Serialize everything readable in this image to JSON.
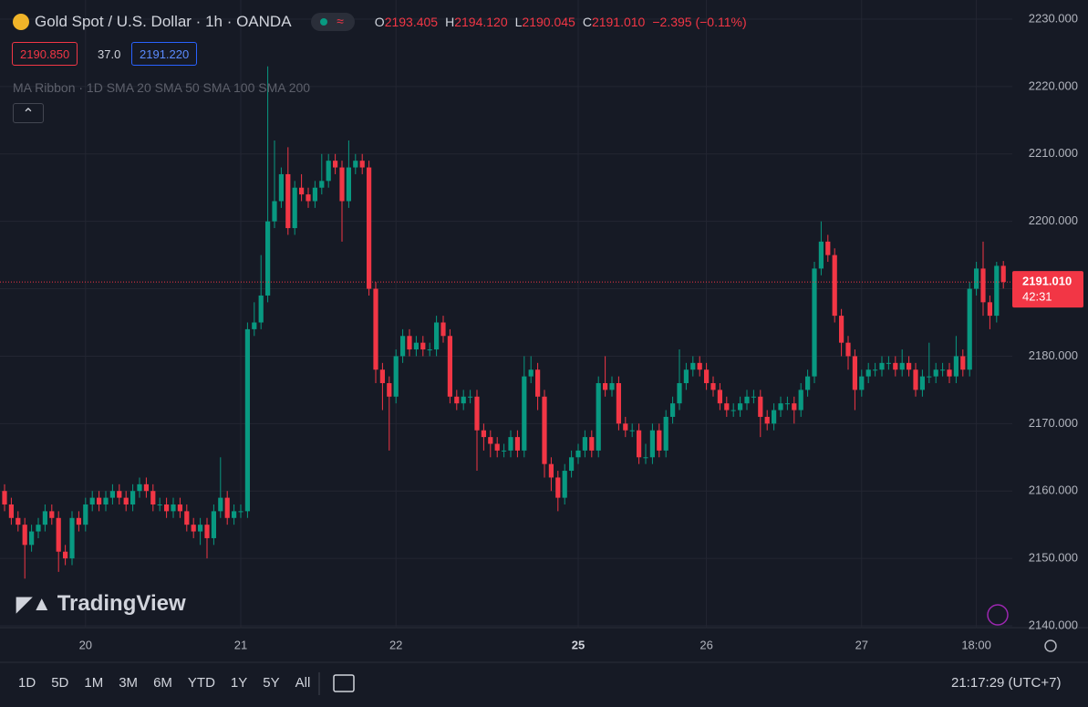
{
  "header": {
    "title": "Gold Spot / U.S. Dollar · 1h · OANDA",
    "readout": [
      {
        "label": "O",
        "value": "2193.405"
      },
      {
        "label": "H",
        "value": "2194.120"
      },
      {
        "label": "L",
        "value": "2190.045"
      },
      {
        "label": "C",
        "value": "2191.010"
      }
    ],
    "change": "−2.395 (−0.11%)",
    "bid": "2190.850",
    "spread": "37.0",
    "ask": "2191.220",
    "indicator": "MA Ribbon · 1D SMA 20 SMA 50 SMA 100 SMA 200"
  },
  "chart_data": {
    "type": "candlestick",
    "up_color": "#089981",
    "down_color": "#f23645",
    "grid": true,
    "ylim": [
      2140,
      2230
    ],
    "yticks": [
      {
        "value": 2140,
        "label": "2140.000"
      },
      {
        "value": 2150,
        "label": "2150.000"
      },
      {
        "value": 2160,
        "label": "2160.000"
      },
      {
        "value": 2170,
        "label": "2170.000"
      },
      {
        "value": 2180,
        "label": "2180.000"
      },
      {
        "value": 2190,
        "label": "2190.000"
      },
      {
        "value": 2200,
        "label": "2200.000"
      },
      {
        "value": 2210,
        "label": "2210.000"
      },
      {
        "value": 2220,
        "label": "2220.000"
      },
      {
        "value": 2230,
        "label": "2230.000"
      }
    ],
    "xticks": [
      {
        "value": 12,
        "label": "20"
      },
      {
        "value": 35,
        "label": "21"
      },
      {
        "value": 58,
        "label": "22"
      },
      {
        "value": 85,
        "label": "25"
      },
      {
        "value": 104,
        "label": "26"
      },
      {
        "value": 127,
        "label": "27"
      },
      {
        "value": 144,
        "label": "18:00"
      }
    ],
    "open": [
      2160,
      2158,
      2156,
      2155,
      2152,
      2154,
      2155,
      2157,
      2156,
      2151,
      2150,
      2156,
      2155,
      2158,
      2159,
      2158,
      2159,
      2160,
      2159,
      2158,
      2160,
      2161,
      2160,
      2158,
      2158,
      2157,
      2158,
      2157,
      2155,
      2154,
      2155,
      2153,
      2157,
      2159,
      2156,
      2157,
      2157,
      2184,
      2185,
      2189,
      2200,
      2203,
      2207,
      2199,
      2205,
      2204,
      2203,
      2205,
      2206,
      2209,
      2208,
      2203,
      2208,
      2209,
      2208,
      2190,
      2178,
      2176,
      2174,
      2180,
      2183,
      2181,
      2182,
      2181,
      2181,
      2185,
      2183,
      2174,
      2173,
      2174,
      2174,
      2169,
      2168,
      2167,
      2166,
      2166,
      2168,
      2166,
      2177,
      2178,
      2174,
      2164,
      2162,
      2159,
      2163,
      2165,
      2166,
      2168,
      2166,
      2176,
      2175,
      2176,
      2170,
      2169,
      2169,
      2165,
      2165,
      2169,
      2166,
      2171,
      2173,
      2176,
      2178,
      2179,
      2178,
      2176,
      2175,
      2173,
      2172,
      2172,
      2173,
      2174,
      2174,
      2171,
      2170,
      2172,
      2173,
      2173,
      2172,
      2175,
      2177,
      2193,
      2197,
      2195,
      2186,
      2182,
      2180,
      2175,
      2177,
      2178,
      2178,
      2179,
      2179,
      2178,
      2179,
      2178,
      2175,
      2177,
      2177,
      2178,
      2178,
      2177,
      2180,
      2178,
      2190,
      2193,
      2188,
      2186,
      2193.405
    ],
    "high": [
      2161,
      2159,
      2157,
      2156,
      2155,
      2156,
      2158,
      2158,
      2157,
      2152,
      2157,
      2157,
      2159,
      2160,
      2160,
      2160,
      2161,
      2161,
      2160,
      2161,
      2162,
      2162,
      2161,
      2159,
      2159,
      2159,
      2159,
      2158,
      2156,
      2156,
      2156,
      2158,
      2165,
      2160,
      2158,
      2158,
      2185,
      2188,
      2195,
      2223,
      2212,
      2208,
      2211,
      2206,
      2207,
      2205,
      2206,
      2210,
      2210,
      2210,
      2209,
      2212,
      2210,
      2210,
      2209,
      2191,
      2179,
      2177,
      2181,
      2184,
      2184,
      2183,
      2183,
      2182,
      2186,
      2186,
      2184,
      2175,
      2175,
      2175,
      2175,
      2170,
      2169,
      2168,
      2167,
      2169,
      2169,
      2180,
      2180,
      2179,
      2175,
      2165,
      2163,
      2164,
      2166,
      2167,
      2169,
      2169,
      2177,
      2180,
      2177,
      2177,
      2171,
      2170,
      2170,
      2167,
      2170,
      2170,
      2172,
      2174,
      2181,
      2179,
      2180,
      2180,
      2179,
      2177,
      2176,
      2174,
      2173,
      2174,
      2175,
      2175,
      2175,
      2172,
      2173,
      2174,
      2174,
      2174,
      2176,
      2178,
      2194,
      2200,
      2198,
      2196,
      2187,
      2183,
      2181,
      2178,
      2179,
      2179,
      2180,
      2180,
      2180,
      2181,
      2180,
      2179,
      2178,
      2182,
      2179,
      2179,
      2179,
      2183,
      2181,
      2191,
      2194,
      2197,
      2189,
      2194,
      2194.12
    ],
    "low": [
      2157,
      2155,
      2154,
      2147,
      2151,
      2153,
      2154,
      2155,
      2148,
      2149,
      2149,
      2154,
      2154,
      2157,
      2157,
      2157,
      2158,
      2158,
      2157,
      2157,
      2159,
      2159,
      2157,
      2157,
      2156,
      2156,
      2156,
      2154,
      2153,
      2152,
      2150,
      2152,
      2156,
      2155,
      2155,
      2156,
      2156,
      2183,
      2184,
      2188,
      2199,
      2202,
      2198,
      2198,
      2203,
      2202,
      2202,
      2204,
      2205,
      2207,
      2197,
      2202,
      2207,
      2207,
      2189,
      2176,
      2172,
      2166,
      2173,
      2179,
      2180,
      2180,
      2180,
      2180,
      2180,
      2182,
      2173,
      2172,
      2172,
      2173,
      2163,
      2166,
      2165,
      2165,
      2165,
      2165,
      2165,
      2165,
      2176,
      2172,
      2162,
      2160,
      2157,
      2158,
      2162,
      2164,
      2165,
      2165,
      2165,
      2174,
      2174,
      2169,
      2168,
      2168,
      2164,
      2164,
      2164,
      2165,
      2165,
      2170,
      2172,
      2175,
      2177,
      2177,
      2175,
      2174,
      2172,
      2171,
      2171,
      2171,
      2172,
      2173,
      2168,
      2169,
      2169,
      2171,
      2172,
      2170,
      2171,
      2174,
      2176,
      2192,
      2194,
      2185,
      2180,
      2178,
      2172,
      2174,
      2176,
      2177,
      2177,
      2178,
      2177,
      2177,
      2177,
      2174,
      2174,
      2176,
      2176,
      2177,
      2176,
      2176,
      2177,
      2177,
      2189,
      2186,
      2184,
      2185,
      2190.045
    ],
    "close": [
      2158,
      2156,
      2155,
      2152,
      2154,
      2155,
      2157,
      2156,
      2151,
      2150,
      2156,
      2155,
      2158,
      2159,
      2158,
      2159,
      2160,
      2159,
      2158,
      2160,
      2161,
      2160,
      2158,
      2158,
      2157,
      2158,
      2157,
      2155,
      2154,
      2155,
      2153,
      2157,
      2159,
      2156,
      2157,
      2157,
      2184,
      2185,
      2189,
      2200,
      2203,
      2207,
      2199,
      2205,
      2204,
      2203,
      2205,
      2206,
      2209,
      2208,
      2203,
      2208,
      2209,
      2208,
      2190,
      2178,
      2176,
      2174,
      2180,
      2183,
      2181,
      2182,
      2181,
      2181,
      2185,
      2183,
      2174,
      2173,
      2174,
      2174,
      2169,
      2168,
      2167,
      2166,
      2166,
      2168,
      2166,
      2177,
      2178,
      2174,
      2164,
      2162,
      2159,
      2163,
      2165,
      2166,
      2168,
      2166,
      2176,
      2175,
      2176,
      2170,
      2169,
      2169,
      2165,
      2165,
      2169,
      2166,
      2171,
      2173,
      2176,
      2178,
      2179,
      2178,
      2176,
      2175,
      2173,
      2172,
      2172,
      2173,
      2174,
      2174,
      2171,
      2170,
      2172,
      2173,
      2173,
      2172,
      2175,
      2177,
      2193,
      2197,
      2195,
      2186,
      2182,
      2180,
      2175,
      2177,
      2178,
      2178,
      2179,
      2179,
      2178,
      2179,
      2178,
      2175,
      2177,
      2177,
      2178,
      2178,
      2177,
      2180,
      2178,
      2190,
      2193,
      2188,
      2186,
      2193.405,
      2191.01
    ],
    "last_price": "2191.010",
    "countdown": "42:31"
  },
  "footer": {
    "ranges": [
      "1D",
      "5D",
      "1M",
      "3M",
      "6M",
      "YTD",
      "1Y",
      "5Y",
      "All"
    ],
    "clock": "21:17:29 (UTC+7)",
    "logo": "TradingView"
  }
}
